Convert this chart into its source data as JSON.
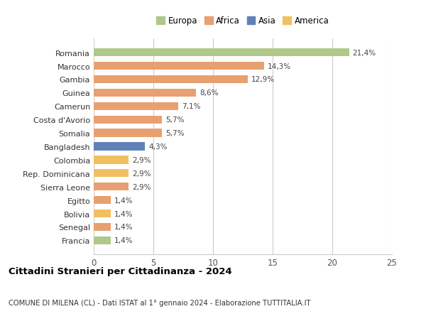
{
  "categories": [
    "Francia",
    "Senegal",
    "Bolivia",
    "Egitto",
    "Sierra Leone",
    "Rep. Dominicana",
    "Colombia",
    "Bangladesh",
    "Somalia",
    "Costa d'Avorio",
    "Camerun",
    "Guinea",
    "Gambia",
    "Marocco",
    "Romania"
  ],
  "values": [
    1.4,
    1.4,
    1.4,
    1.4,
    2.9,
    2.9,
    2.9,
    4.3,
    5.7,
    5.7,
    7.1,
    8.6,
    12.9,
    14.3,
    21.4
  ],
  "colors": [
    "#b0c88a",
    "#e8a070",
    "#f0c060",
    "#e8a070",
    "#e8a070",
    "#f0c060",
    "#f0c060",
    "#6080b8",
    "#e8a070",
    "#e8a070",
    "#e8a070",
    "#e8a070",
    "#e8a070",
    "#e8a070",
    "#b0c88a"
  ],
  "labels": [
    "1,4%",
    "1,4%",
    "1,4%",
    "1,4%",
    "2,9%",
    "2,9%",
    "2,9%",
    "4,3%",
    "5,7%",
    "5,7%",
    "7,1%",
    "8,6%",
    "12,9%",
    "14,3%",
    "21,4%"
  ],
  "legend_labels": [
    "Europa",
    "Africa",
    "Asia",
    "America"
  ],
  "legend_colors": [
    "#b0c88a",
    "#e8a070",
    "#6080b8",
    "#f0c060"
  ],
  "title": "Cittadini Stranieri per Cittadinanza - 2024",
  "subtitle": "COMUNE DI MILENA (CL) - Dati ISTAT al 1° gennaio 2024 - Elaborazione TUTTITALIA.IT",
  "xlim": [
    0,
    25
  ],
  "xticks": [
    0,
    5,
    10,
    15,
    20,
    25
  ],
  "background_color": "#ffffff",
  "bar_height": 0.6,
  "grid_color": "#cccccc"
}
